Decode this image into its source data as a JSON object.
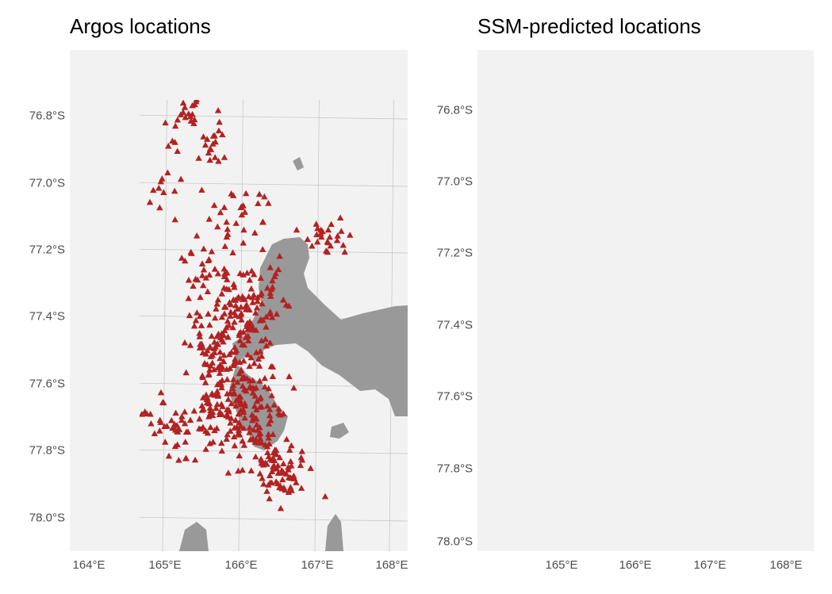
{
  "panels": [
    {
      "id": "argos",
      "title": "Argos locations",
      "marker": "triangle",
      "marker_color": "#b22222",
      "show_track": false,
      "y_ticks": [
        "76.8°S",
        "77.0°S",
        "77.2°S",
        "77.4°S",
        "77.6°S",
        "77.8°S",
        "78.0°S"
      ],
      "x_ticks": [
        "164°E",
        "165°E",
        "166°E",
        "167°E",
        "168°E"
      ]
    },
    {
      "id": "ssm",
      "title": "SSM-predicted locations",
      "marker": "circle",
      "marker_color": "#1e90ff",
      "show_track": true,
      "track_color": "#3a3a3a",
      "y_ticks": [
        "76.8°S",
        "77.0°S",
        "77.2°S",
        "77.4°S",
        "77.6°S",
        "77.8°S",
        "78.0°S"
      ],
      "x_ticks": [
        "165°E",
        "166°E",
        "167°E",
        "168°E"
      ]
    }
  ],
  "colors": {
    "panel_background": "#f2f2f2",
    "land": "#999999",
    "gridline": "#c8c8c8"
  }
}
